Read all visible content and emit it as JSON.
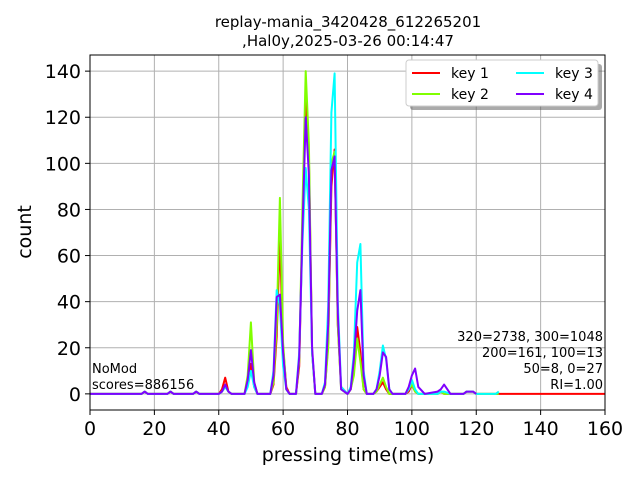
{
  "chart_data": {
    "type": "line",
    "title_line1": "replay-mania_3420428_612265201",
    "title_line2": ",Hal0y,2025-03-26 00:14:47",
    "xlabel": "pressing time(ms)",
    "ylabel": "count",
    "xlim": [
      0,
      160
    ],
    "ylim": [
      -7,
      147
    ],
    "xticks": [
      0,
      20,
      40,
      60,
      80,
      100,
      120,
      140,
      160
    ],
    "yticks": [
      0,
      20,
      40,
      60,
      80,
      100,
      120,
      140
    ],
    "grid": true,
    "legend_position": "top-right",
    "annotations": {
      "left_line1": "NoMod",
      "left_line2": "scores=886156",
      "right_line1": "320=2738, 300=1048",
      "right_line2": "200=161, 100=13",
      "right_line3": "50=8, 0=27",
      "right_line4": "RI=1.00"
    },
    "series": [
      {
        "name": "key 1",
        "color": "#ff0000",
        "x": [
          0,
          16,
          17,
          18,
          24,
          25,
          26,
          32,
          33,
          34,
          40,
          41,
          42,
          43,
          44,
          48,
          49,
          50,
          51,
          52,
          53,
          56,
          57,
          58,
          59,
          60,
          61,
          62,
          64,
          65,
          66,
          67,
          68,
          69,
          70,
          72,
          73,
          74,
          75,
          76,
          77,
          78,
          80,
          81,
          82,
          83,
          84,
          85,
          86,
          88,
          89,
          90,
          91,
          92,
          93,
          94,
          98,
          99,
          100,
          101,
          102,
          104,
          108,
          109,
          110,
          112,
          116,
          117,
          118,
          119,
          120,
          127,
          160
        ],
        "y": [
          0,
          0,
          1,
          0,
          0,
          1,
          0,
          0,
          1,
          0,
          0,
          2,
          7,
          1,
          0,
          0,
          4,
          13,
          3,
          0,
          0,
          0,
          4,
          25,
          68,
          20,
          3,
          0,
          0,
          12,
          72,
          128,
          102,
          18,
          0,
          0,
          3,
          22,
          90,
          106,
          30,
          3,
          0,
          2,
          10,
          29,
          18,
          2,
          0,
          0,
          1,
          3,
          5,
          2,
          0,
          0,
          0,
          1,
          4,
          1,
          0,
          0,
          0,
          1,
          0,
          0,
          0,
          1,
          1,
          1,
          0,
          0,
          0
        ]
      },
      {
        "name": "key 2",
        "color": "#80ff00",
        "x": [
          0,
          16,
          17,
          18,
          24,
          25,
          26,
          32,
          33,
          34,
          40,
          41,
          42,
          43,
          44,
          48,
          49,
          50,
          51,
          52,
          53,
          56,
          57,
          58,
          59,
          60,
          61,
          62,
          64,
          65,
          66,
          67,
          68,
          69,
          70,
          72,
          73,
          74,
          75,
          76,
          77,
          78,
          80,
          81,
          82,
          83,
          84,
          85,
          86,
          88,
          89,
          90,
          91,
          92,
          93,
          94,
          98,
          99,
          100,
          101,
          102,
          104,
          108,
          109,
          110,
          112,
          116,
          117,
          118,
          119,
          120,
          127
        ],
        "y": [
          0,
          0,
          1,
          0,
          0,
          1,
          0,
          0,
          1,
          0,
          0,
          1,
          3,
          1,
          0,
          0,
          8,
          31,
          5,
          0,
          0,
          0,
          5,
          30,
          85,
          22,
          2,
          0,
          0,
          14,
          80,
          140,
          108,
          18,
          0,
          0,
          3,
          20,
          100,
          105,
          30,
          2,
          0,
          2,
          8,
          24,
          14,
          2,
          0,
          0,
          1,
          4,
          7,
          3,
          0,
          0,
          0,
          2,
          4,
          1,
          0,
          0,
          0,
          1,
          0,
          0,
          0,
          1,
          1,
          1,
          0,
          0
        ]
      },
      {
        "name": "key 3",
        "color": "#00ffff",
        "x": [
          0,
          16,
          17,
          18,
          24,
          25,
          26,
          32,
          33,
          34,
          40,
          41,
          42,
          43,
          44,
          48,
          49,
          50,
          51,
          52,
          53,
          56,
          57,
          58,
          59,
          60,
          61,
          62,
          64,
          65,
          66,
          67,
          68,
          69,
          70,
          72,
          73,
          74,
          75,
          76,
          77,
          78,
          80,
          81,
          82,
          83,
          84,
          85,
          86,
          88,
          89,
          90,
          91,
          92,
          93,
          94,
          98,
          99,
          100,
          101,
          102,
          104,
          108,
          109,
          110,
          112,
          116,
          117,
          118,
          119,
          120,
          124,
          126,
          127
        ],
        "y": [
          0,
          0,
          1,
          0,
          0,
          1,
          0,
          0,
          1,
          0,
          0,
          1,
          3,
          1,
          0,
          0,
          3,
          10,
          3,
          0,
          0,
          0,
          10,
          45,
          38,
          12,
          2,
          0,
          0,
          18,
          65,
          98,
          80,
          18,
          0,
          0,
          5,
          38,
          122,
          139,
          40,
          3,
          0,
          3,
          18,
          57,
          65,
          10,
          0,
          0,
          2,
          10,
          21,
          15,
          2,
          0,
          0,
          2,
          6,
          2,
          0,
          0,
          0,
          1,
          1,
          0,
          0,
          1,
          1,
          1,
          0,
          0,
          0,
          1
        ]
      },
      {
        "name": "key 4",
        "color": "#8000ff",
        "x": [
          0,
          16,
          17,
          18,
          24,
          25,
          26,
          32,
          33,
          34,
          40,
          41,
          42,
          43,
          44,
          48,
          49,
          50,
          51,
          52,
          53,
          56,
          57,
          58,
          59,
          60,
          61,
          62,
          64,
          65,
          66,
          67,
          68,
          69,
          70,
          72,
          73,
          74,
          75,
          76,
          77,
          78,
          80,
          81,
          82,
          83,
          84,
          85,
          86,
          88,
          89,
          90,
          91,
          92,
          93,
          94,
          98,
          99,
          100,
          101,
          102,
          104,
          108,
          109,
          110,
          112,
          116,
          117,
          118,
          119,
          120
        ],
        "y": [
          0,
          0,
          1,
          0,
          0,
          1,
          0,
          0,
          1,
          0,
          0,
          1,
          4,
          1,
          0,
          0,
          6,
          19,
          5,
          0,
          0,
          0,
          8,
          42,
          43,
          18,
          2,
          0,
          0,
          16,
          70,
          120,
          95,
          20,
          0,
          0,
          4,
          30,
          97,
          103,
          35,
          2,
          0,
          2,
          15,
          36,
          45,
          8,
          0,
          0,
          2,
          8,
          18,
          16,
          2,
          0,
          0,
          3,
          8,
          11,
          3,
          0,
          1,
          2,
          4,
          0,
          0,
          1,
          1,
          1,
          0
        ]
      }
    ]
  }
}
